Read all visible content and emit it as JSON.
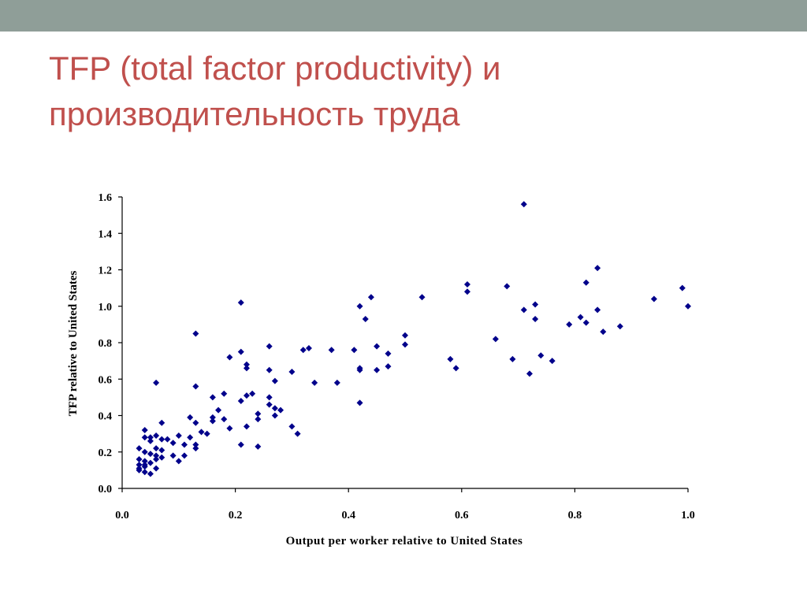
{
  "slide": {
    "title_line1": "TFP (total factor productivity) и",
    "title_line2": "производительность труда",
    "accent_color": "#c0504d",
    "top_bar_color": "#8f9e98"
  },
  "chart_data": {
    "type": "scatter",
    "xlabel": "Output per worker relative to United States",
    "ylabel": "TFP relative to United States",
    "xlim": [
      0.0,
      1.0
    ],
    "ylim": [
      0.0,
      1.6
    ],
    "xticks": [
      "0.0",
      "0.2",
      "0.4",
      "0.6",
      "0.8",
      "1.0"
    ],
    "yticks": [
      "0.0",
      "0.2",
      "0.4",
      "0.6",
      "0.8",
      "1.0",
      "1.2",
      "1.4",
      "1.6"
    ],
    "grid": false,
    "legend": "none",
    "marker_color": "#00008b",
    "marker": "diamond",
    "points": [
      [
        0.71,
        1.56
      ],
      [
        0.84,
        1.21
      ],
      [
        0.82,
        1.13
      ],
      [
        0.99,
        1.1
      ],
      [
        0.94,
        1.04
      ],
      [
        1.0,
        1.0
      ],
      [
        0.61,
        1.12
      ],
      [
        0.61,
        1.08
      ],
      [
        0.68,
        1.11
      ],
      [
        0.73,
        1.01
      ],
      [
        0.71,
        0.98
      ],
      [
        0.84,
        0.98
      ],
      [
        0.81,
        0.94
      ],
      [
        0.73,
        0.93
      ],
      [
        0.82,
        0.91
      ],
      [
        0.79,
        0.9
      ],
      [
        0.88,
        0.89
      ],
      [
        0.85,
        0.86
      ],
      [
        0.66,
        0.82
      ],
      [
        0.74,
        0.73
      ],
      [
        0.69,
        0.71
      ],
      [
        0.76,
        0.7
      ],
      [
        0.72,
        0.63
      ],
      [
        0.58,
        0.71
      ],
      [
        0.59,
        0.66
      ],
      [
        0.53,
        1.05
      ],
      [
        0.44,
        1.05
      ],
      [
        0.42,
        1.0
      ],
      [
        0.43,
        0.93
      ],
      [
        0.5,
        0.84
      ],
      [
        0.5,
        0.79
      ],
      [
        0.45,
        0.78
      ],
      [
        0.47,
        0.74
      ],
      [
        0.47,
        0.67
      ],
      [
        0.45,
        0.65
      ],
      [
        0.42,
        0.65
      ],
      [
        0.42,
        0.66
      ],
      [
        0.41,
        0.76
      ],
      [
        0.42,
        0.47
      ],
      [
        0.21,
        1.02
      ],
      [
        0.13,
        0.85
      ],
      [
        0.33,
        0.77
      ],
      [
        0.32,
        0.76
      ],
      [
        0.37,
        0.76
      ],
      [
        0.26,
        0.78
      ],
      [
        0.21,
        0.75
      ],
      [
        0.19,
        0.72
      ],
      [
        0.22,
        0.68
      ],
      [
        0.22,
        0.66
      ],
      [
        0.26,
        0.65
      ],
      [
        0.3,
        0.64
      ],
      [
        0.27,
        0.59
      ],
      [
        0.34,
        0.58
      ],
      [
        0.38,
        0.58
      ],
      [
        0.18,
        0.52
      ],
      [
        0.22,
        0.51
      ],
      [
        0.23,
        0.52
      ],
      [
        0.21,
        0.48
      ],
      [
        0.26,
        0.5
      ],
      [
        0.26,
        0.46
      ],
      [
        0.27,
        0.44
      ],
      [
        0.28,
        0.43
      ],
      [
        0.24,
        0.41
      ],
      [
        0.27,
        0.4
      ],
      [
        0.24,
        0.38
      ],
      [
        0.22,
        0.34
      ],
      [
        0.3,
        0.34
      ],
      [
        0.31,
        0.3
      ],
      [
        0.19,
        0.33
      ],
      [
        0.21,
        0.24
      ],
      [
        0.24,
        0.23
      ],
      [
        0.06,
        0.58
      ],
      [
        0.13,
        0.56
      ],
      [
        0.16,
        0.5
      ],
      [
        0.17,
        0.43
      ],
      [
        0.12,
        0.39
      ],
      [
        0.16,
        0.39
      ],
      [
        0.16,
        0.37
      ],
      [
        0.18,
        0.38
      ],
      [
        0.13,
        0.36
      ],
      [
        0.07,
        0.36
      ],
      [
        0.14,
        0.31
      ],
      [
        0.15,
        0.3
      ],
      [
        0.1,
        0.29
      ],
      [
        0.12,
        0.28
      ],
      [
        0.08,
        0.27
      ],
      [
        0.07,
        0.27
      ],
      [
        0.04,
        0.32
      ],
      [
        0.04,
        0.28
      ],
      [
        0.05,
        0.28
      ],
      [
        0.06,
        0.29
      ],
      [
        0.05,
        0.26
      ],
      [
        0.09,
        0.25
      ],
      [
        0.11,
        0.24
      ],
      [
        0.13,
        0.24
      ],
      [
        0.13,
        0.22
      ],
      [
        0.06,
        0.22
      ],
      [
        0.07,
        0.21
      ],
      [
        0.03,
        0.22
      ],
      [
        0.04,
        0.2
      ],
      [
        0.05,
        0.19
      ],
      [
        0.09,
        0.18
      ],
      [
        0.11,
        0.18
      ],
      [
        0.07,
        0.17
      ],
      [
        0.06,
        0.16
      ],
      [
        0.1,
        0.15
      ],
      [
        0.04,
        0.15
      ],
      [
        0.05,
        0.14
      ],
      [
        0.03,
        0.16
      ],
      [
        0.03,
        0.13
      ],
      [
        0.04,
        0.12
      ],
      [
        0.03,
        0.11
      ],
      [
        0.06,
        0.11
      ],
      [
        0.03,
        0.1
      ],
      [
        0.04,
        0.09
      ],
      [
        0.05,
        0.08
      ],
      [
        0.06,
        0.18
      ],
      [
        0.04,
        0.13
      ]
    ]
  }
}
